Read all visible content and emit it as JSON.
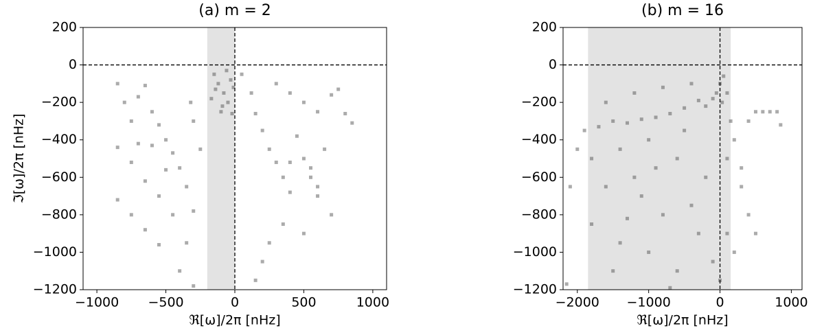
{
  "chart_data": [
    {
      "type": "scatter",
      "title": "(a) m = 2",
      "x_label": "ℜ[ω]/2π [nHz]",
      "y_label": "ℑ[ω]/2π [nHz]",
      "color": "#444444",
      "alpha": 0.45,
      "shade_x": [
        -200,
        0
      ],
      "ref_x": 0,
      "ref_y": 0,
      "xlim": [
        -1100,
        1100
      ],
      "ylim": [
        -1200,
        200
      ],
      "xticks": [
        {
          "value": -1000,
          "label": "−1000"
        },
        {
          "value": -500,
          "label": "−500"
        },
        0,
        500,
        1000
      ],
      "yticks": [
        200,
        0,
        {
          "value": -200,
          "label": "−200"
        },
        {
          "value": -400,
          "label": "−400"
        },
        {
          "value": -600,
          "label": "−600"
        },
        {
          "value": -800,
          "label": "−800"
        },
        {
          "value": -1000,
          "label": "−1000"
        },
        {
          "value": -1200,
          "label": "−1200"
        }
      ],
      "x": [
        -150,
        -120,
        -80,
        -50,
        -30,
        -100,
        -170,
        -20,
        -60,
        -140,
        -90,
        -10,
        -850,
        -800,
        -750,
        -700,
        -650,
        -600,
        -550,
        -500,
        -450,
        -400,
        -350,
        -300,
        -850,
        -750,
        -650,
        -550,
        -450,
        -350,
        -850,
        -750,
        -650,
        -550,
        -400,
        -300,
        -300,
        -250,
        -320,
        -700,
        -500,
        -600,
        50,
        120,
        150,
        200,
        250,
        300,
        350,
        400,
        300,
        400,
        500,
        600,
        700,
        750,
        800,
        850,
        450,
        500,
        550,
        600,
        350,
        250,
        200,
        150,
        550,
        650,
        400,
        700,
        500,
        600
      ],
      "y": [
        -50,
        -100,
        -150,
        -200,
        -80,
        -250,
        -180,
        -260,
        -30,
        -130,
        -220,
        -120,
        -100,
        -200,
        -300,
        -170,
        -110,
        -250,
        -320,
        -400,
        -470,
        -550,
        -650,
        -780,
        -440,
        -520,
        -620,
        -700,
        -800,
        -950,
        -720,
        -800,
        -880,
        -960,
        -1100,
        -1180,
        -300,
        -450,
        -200,
        -420,
        -560,
        -430,
        -50,
        -150,
        -260,
        -350,
        -450,
        -520,
        -600,
        -680,
        -100,
        -150,
        -200,
        -250,
        -160,
        -130,
        -260,
        -310,
        -380,
        -500,
        -600,
        -700,
        -850,
        -950,
        -1050,
        -1150,
        -550,
        -450,
        -520,
        -800,
        -900,
        -650
      ]
    },
    {
      "type": "scatter",
      "title": "(b) m = 16",
      "x_label": "ℜ[ω]/2π [nHz]",
      "color": "#444444",
      "alpha": 0.45,
      "shade_x": [
        -1850,
        150
      ],
      "ref_x": 0,
      "ref_y": 0,
      "xlim": [
        -2200,
        1150
      ],
      "ylim": [
        -1200,
        200
      ],
      "xticks": [
        {
          "value": -2000,
          "label": "−2000"
        },
        {
          "value": -1000,
          "label": "−1000"
        },
        0,
        1000
      ],
      "yticks": [
        200,
        0,
        {
          "value": -200,
          "label": "−200"
        },
        {
          "value": -400,
          "label": "−400"
        },
        {
          "value": -600,
          "label": "−600"
        },
        {
          "value": -800,
          "label": "−800"
        },
        {
          "value": -1000,
          "label": "−1000"
        },
        {
          "value": -1200,
          "label": "−1200"
        }
      ],
      "x": [
        0,
        -50,
        30,
        -100,
        50,
        -200,
        -300,
        -500,
        -700,
        -900,
        -1100,
        -1300,
        -1500,
        -1700,
        -1900,
        -1200,
        -800,
        -400,
        -1600,
        -1000,
        -1400,
        -1800,
        -600,
        -1200,
        -1600,
        -2000,
        -2100,
        -1800,
        -1400,
        -1000,
        -600,
        -2150,
        -1500,
        -800,
        -400,
        -200,
        -300,
        -100,
        100,
        200,
        300,
        400,
        500,
        600,
        700,
        800,
        850,
        300,
        400,
        500,
        100,
        200,
        0,
        -700,
        -1100,
        -500,
        150,
        100,
        -1300,
        -900
      ],
      "y": [
        -100,
        -150,
        -200,
        -180,
        -60,
        -220,
        -190,
        -230,
        -260,
        -280,
        -290,
        -310,
        -300,
        -330,
        -350,
        -150,
        -120,
        -100,
        -200,
        -400,
        -450,
        -500,
        -500,
        -600,
        -650,
        -450,
        -650,
        -850,
        -950,
        -1000,
        -1100,
        -1170,
        -1100,
        -800,
        -750,
        -600,
        -900,
        -1050,
        -500,
        -400,
        -550,
        -300,
        -250,
        -250,
        -250,
        -250,
        -320,
        -650,
        -800,
        -900,
        -900,
        -1000,
        -1150,
        -1190,
        -700,
        -350,
        -300,
        -150,
        -820,
        -550
      ]
    }
  ]
}
